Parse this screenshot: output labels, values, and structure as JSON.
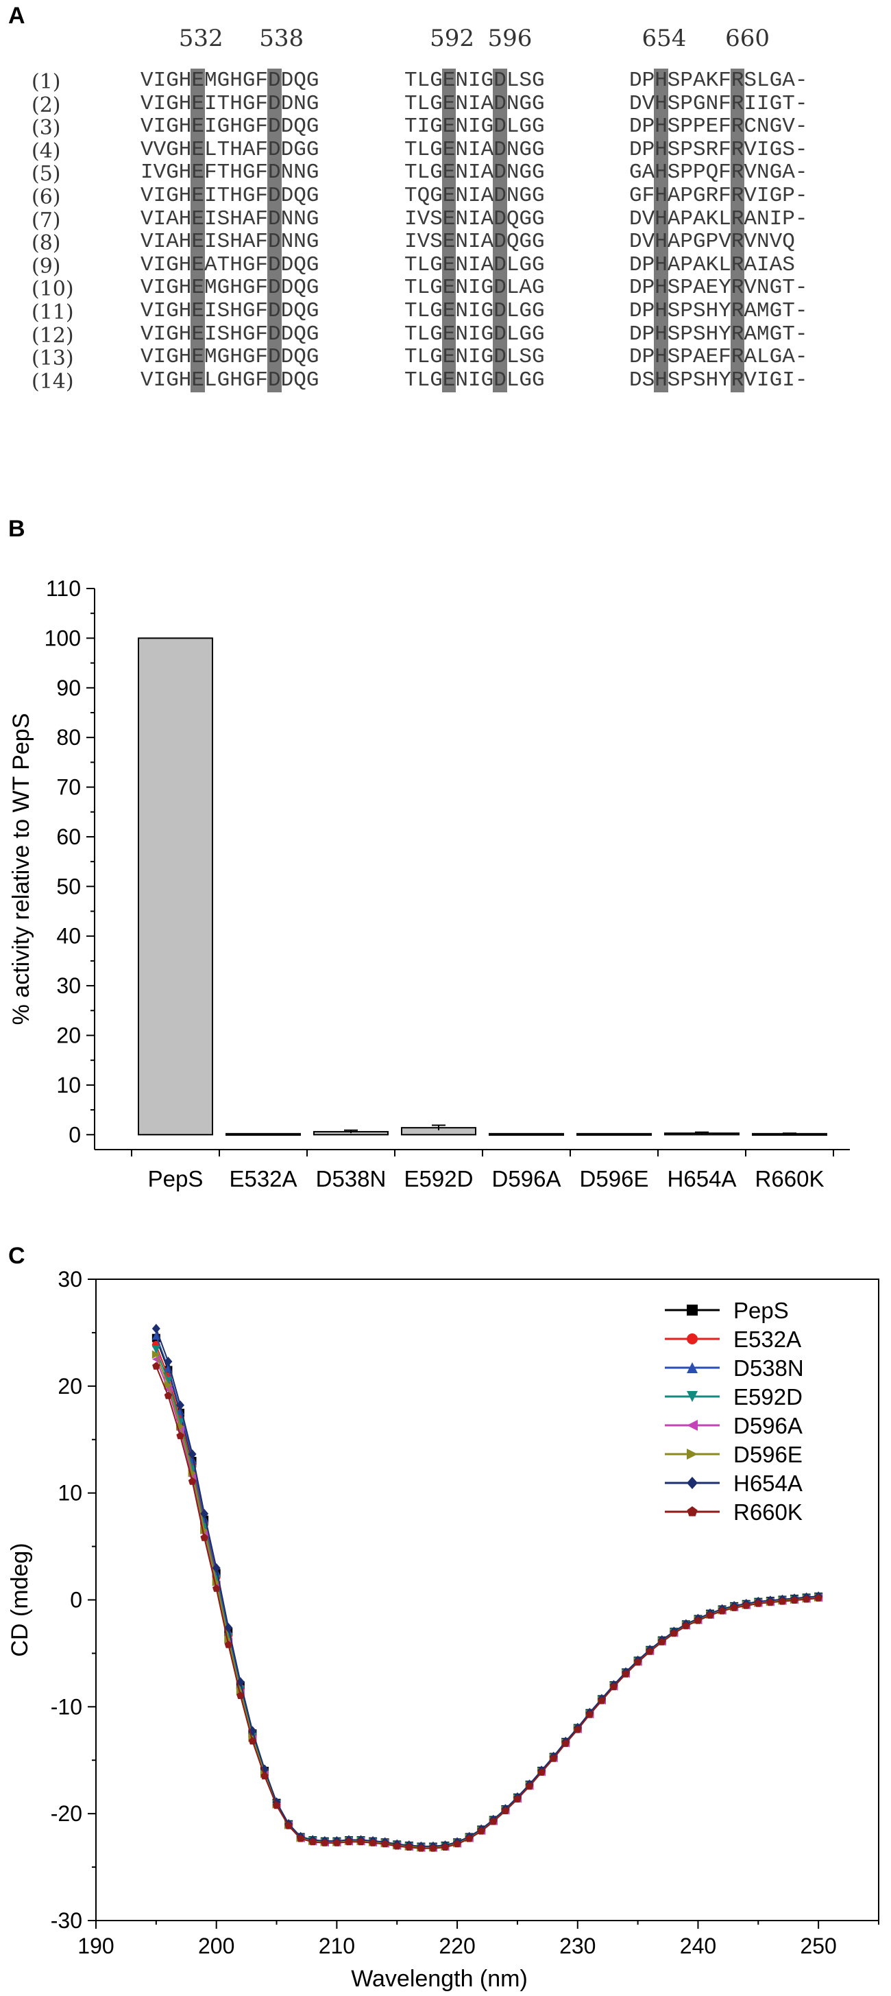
{
  "panels": {
    "a": "A",
    "b": "B",
    "c": "C"
  },
  "alignment": {
    "positions": [
      "532",
      "538",
      "592",
      "596",
      "654",
      "660"
    ],
    "rows": [
      {
        "label": "(1)",
        "block1": "VIGHEMGHGFDDQG",
        "block2": "TLGENIGDLSG",
        "block3": "DPHSPAKFRSLGA-"
      },
      {
        "label": "(2)",
        "block1": "VIGHEITHGFDDNG",
        "block2": "TLGENIADNGG",
        "block3": "DVHSPGNFRIIGT-"
      },
      {
        "label": "(3)",
        "block1": "VIGHEIGHGFDDQG",
        "block2": "TIGENIGDLGG",
        "block3": "DPHSPPEFRCNGV-"
      },
      {
        "label": "(4)",
        "block1": "VVGHELTHAFDDGG",
        "block2": "TLGENIADNGG",
        "block3": "DPHSPSRFRVIGS-"
      },
      {
        "label": "(5)",
        "block1": "IVGHEFTHGFDNNG",
        "block2": "TLGENIADNGG",
        "block3": "GAHSPPQFRVNGA-"
      },
      {
        "label": "(6)",
        "block1": "VIGHEITHGFDDQG",
        "block2": "TQGENIADNGG",
        "block3": "GFHAPGRFRVIGP-"
      },
      {
        "label": "(7)",
        "block1": "VIAHEISHAFDNNG",
        "block2": "IVSENIADQGG",
        "block3": "DVHAPAKLRANIP-"
      },
      {
        "label": "(8)",
        "block1": "VIAHEISHAFDNNG",
        "block2": "IVSENIADQGG",
        "block3": "DVHAPGPVRVNVQ"
      },
      {
        "label": "(9)",
        "block1": "VIGHEATHGFDDQG",
        "block2": "TLGENIADLGG",
        "block3": "DPHAPAKLRAIAS"
      },
      {
        "label": "(10)",
        "block1": "VIGHEMGHGFDDQG",
        "block2": "TLGENIGDLAG",
        "block3": "DPHSPAEYRVNGT-"
      },
      {
        "label": "(11)",
        "block1": "VIGHEISHGFDDQG",
        "block2": "TLGENIGDLGG",
        "block3": "DPHSPSHYRAMGT-"
      },
      {
        "label": "(12)",
        "block1": "VIGHEISHGFDDQG",
        "block2": "TLGENIGDLGG",
        "block3": "DPHSPSHYRAMGT-"
      },
      {
        "label": "(13)",
        "block1": "VIGHEMGHGFDDQG",
        "block2": "TLGENIGDLSG",
        "block3": "DPHSPAEFRALGA-"
      },
      {
        "label": "(14)",
        "block1": "VIGHELGHGFDDQG",
        "block2": "TLGENIGDLGG",
        "block3": "DSHSPSHYRVIGI-"
      }
    ]
  },
  "chart_data": [
    {
      "type": "bar",
      "categories": [
        "PepS",
        "E532A",
        "D538N",
        "E592D",
        "D596A",
        "D596E",
        "H654A",
        "R660K"
      ],
      "values": [
        100,
        0.2,
        0.6,
        1.4,
        0.2,
        0.2,
        0.3,
        0.2
      ],
      "errors": [
        0,
        0,
        0.3,
        0.5,
        0,
        0,
        0.2,
        0.1
      ],
      "ylabel": "% activity relative to WT PepS",
      "ylim": [
        -3,
        110
      ],
      "yticks": [
        0,
        10,
        20,
        30,
        40,
        50,
        60,
        70,
        80,
        90,
        100,
        110
      ],
      "bar_color": "#c0c0c0"
    },
    {
      "type": "line",
      "xlabel": "Wavelength (nm)",
      "ylabel": "CD (mdeg)",
      "xlim": [
        190,
        255
      ],
      "ylim": [
        -30,
        30
      ],
      "xticks": [
        190,
        200,
        210,
        220,
        230,
        240,
        250
      ],
      "yticks": [
        -30,
        -20,
        -10,
        0,
        10,
        20,
        30
      ],
      "legend_position": "top-right",
      "series": [
        {
          "name": "PepS",
          "color": "#000000",
          "marker": "square",
          "offset": 0.0
        },
        {
          "name": "E532A",
          "color": "#e8201c",
          "marker": "circle",
          "offset": -0.3
        },
        {
          "name": "D538N",
          "color": "#2a4fb0",
          "marker": "triangle-up",
          "offset": 0.1
        },
        {
          "name": "E592D",
          "color": "#138a80",
          "marker": "triangle-down",
          "offset": -0.5
        },
        {
          "name": "D596A",
          "color": "#c443b8",
          "marker": "triangle-left",
          "offset": -0.9
        },
        {
          "name": "D596E",
          "color": "#8a8a1e",
          "marker": "triangle-right",
          "offset": -0.7
        },
        {
          "name": "H654A",
          "color": "#1d2e6e",
          "marker": "diamond",
          "offset": 0.4
        },
        {
          "name": "R660K",
          "color": "#8e1a1a",
          "marker": "pentagon",
          "offset": -1.2
        }
      ],
      "base_curve": {
        "x": [
          195,
          196,
          197,
          198,
          199,
          200,
          201,
          202,
          203,
          204,
          205,
          206,
          207,
          208,
          209,
          210,
          211,
          212,
          213,
          214,
          215,
          216,
          217,
          218,
          219,
          220,
          221,
          222,
          223,
          224,
          225,
          226,
          227,
          228,
          229,
          230,
          231,
          232,
          233,
          234,
          235,
          236,
          237,
          238,
          239,
          240,
          241,
          242,
          243,
          244,
          245,
          246,
          247,
          248,
          249,
          250
        ],
        "y": [
          24.5,
          21.5,
          17.5,
          13.0,
          7.5,
          2.5,
          -3.0,
          -8.0,
          -12.5,
          -16.0,
          -19.0,
          -21.0,
          -22.2,
          -22.5,
          -22.6,
          -22.6,
          -22.5,
          -22.5,
          -22.6,
          -22.7,
          -22.9,
          -23.0,
          -23.1,
          -23.1,
          -23.0,
          -22.7,
          -22.2,
          -21.5,
          -20.6,
          -19.6,
          -18.5,
          -17.3,
          -16.0,
          -14.7,
          -13.3,
          -12.0,
          -10.6,
          -9.3,
          -8.0,
          -6.8,
          -5.7,
          -4.7,
          -3.8,
          -3.0,
          -2.3,
          -1.8,
          -1.3,
          -0.9,
          -0.6,
          -0.4,
          -0.2,
          -0.1,
          0.0,
          0.1,
          0.2,
          0.3
        ]
      }
    }
  ]
}
